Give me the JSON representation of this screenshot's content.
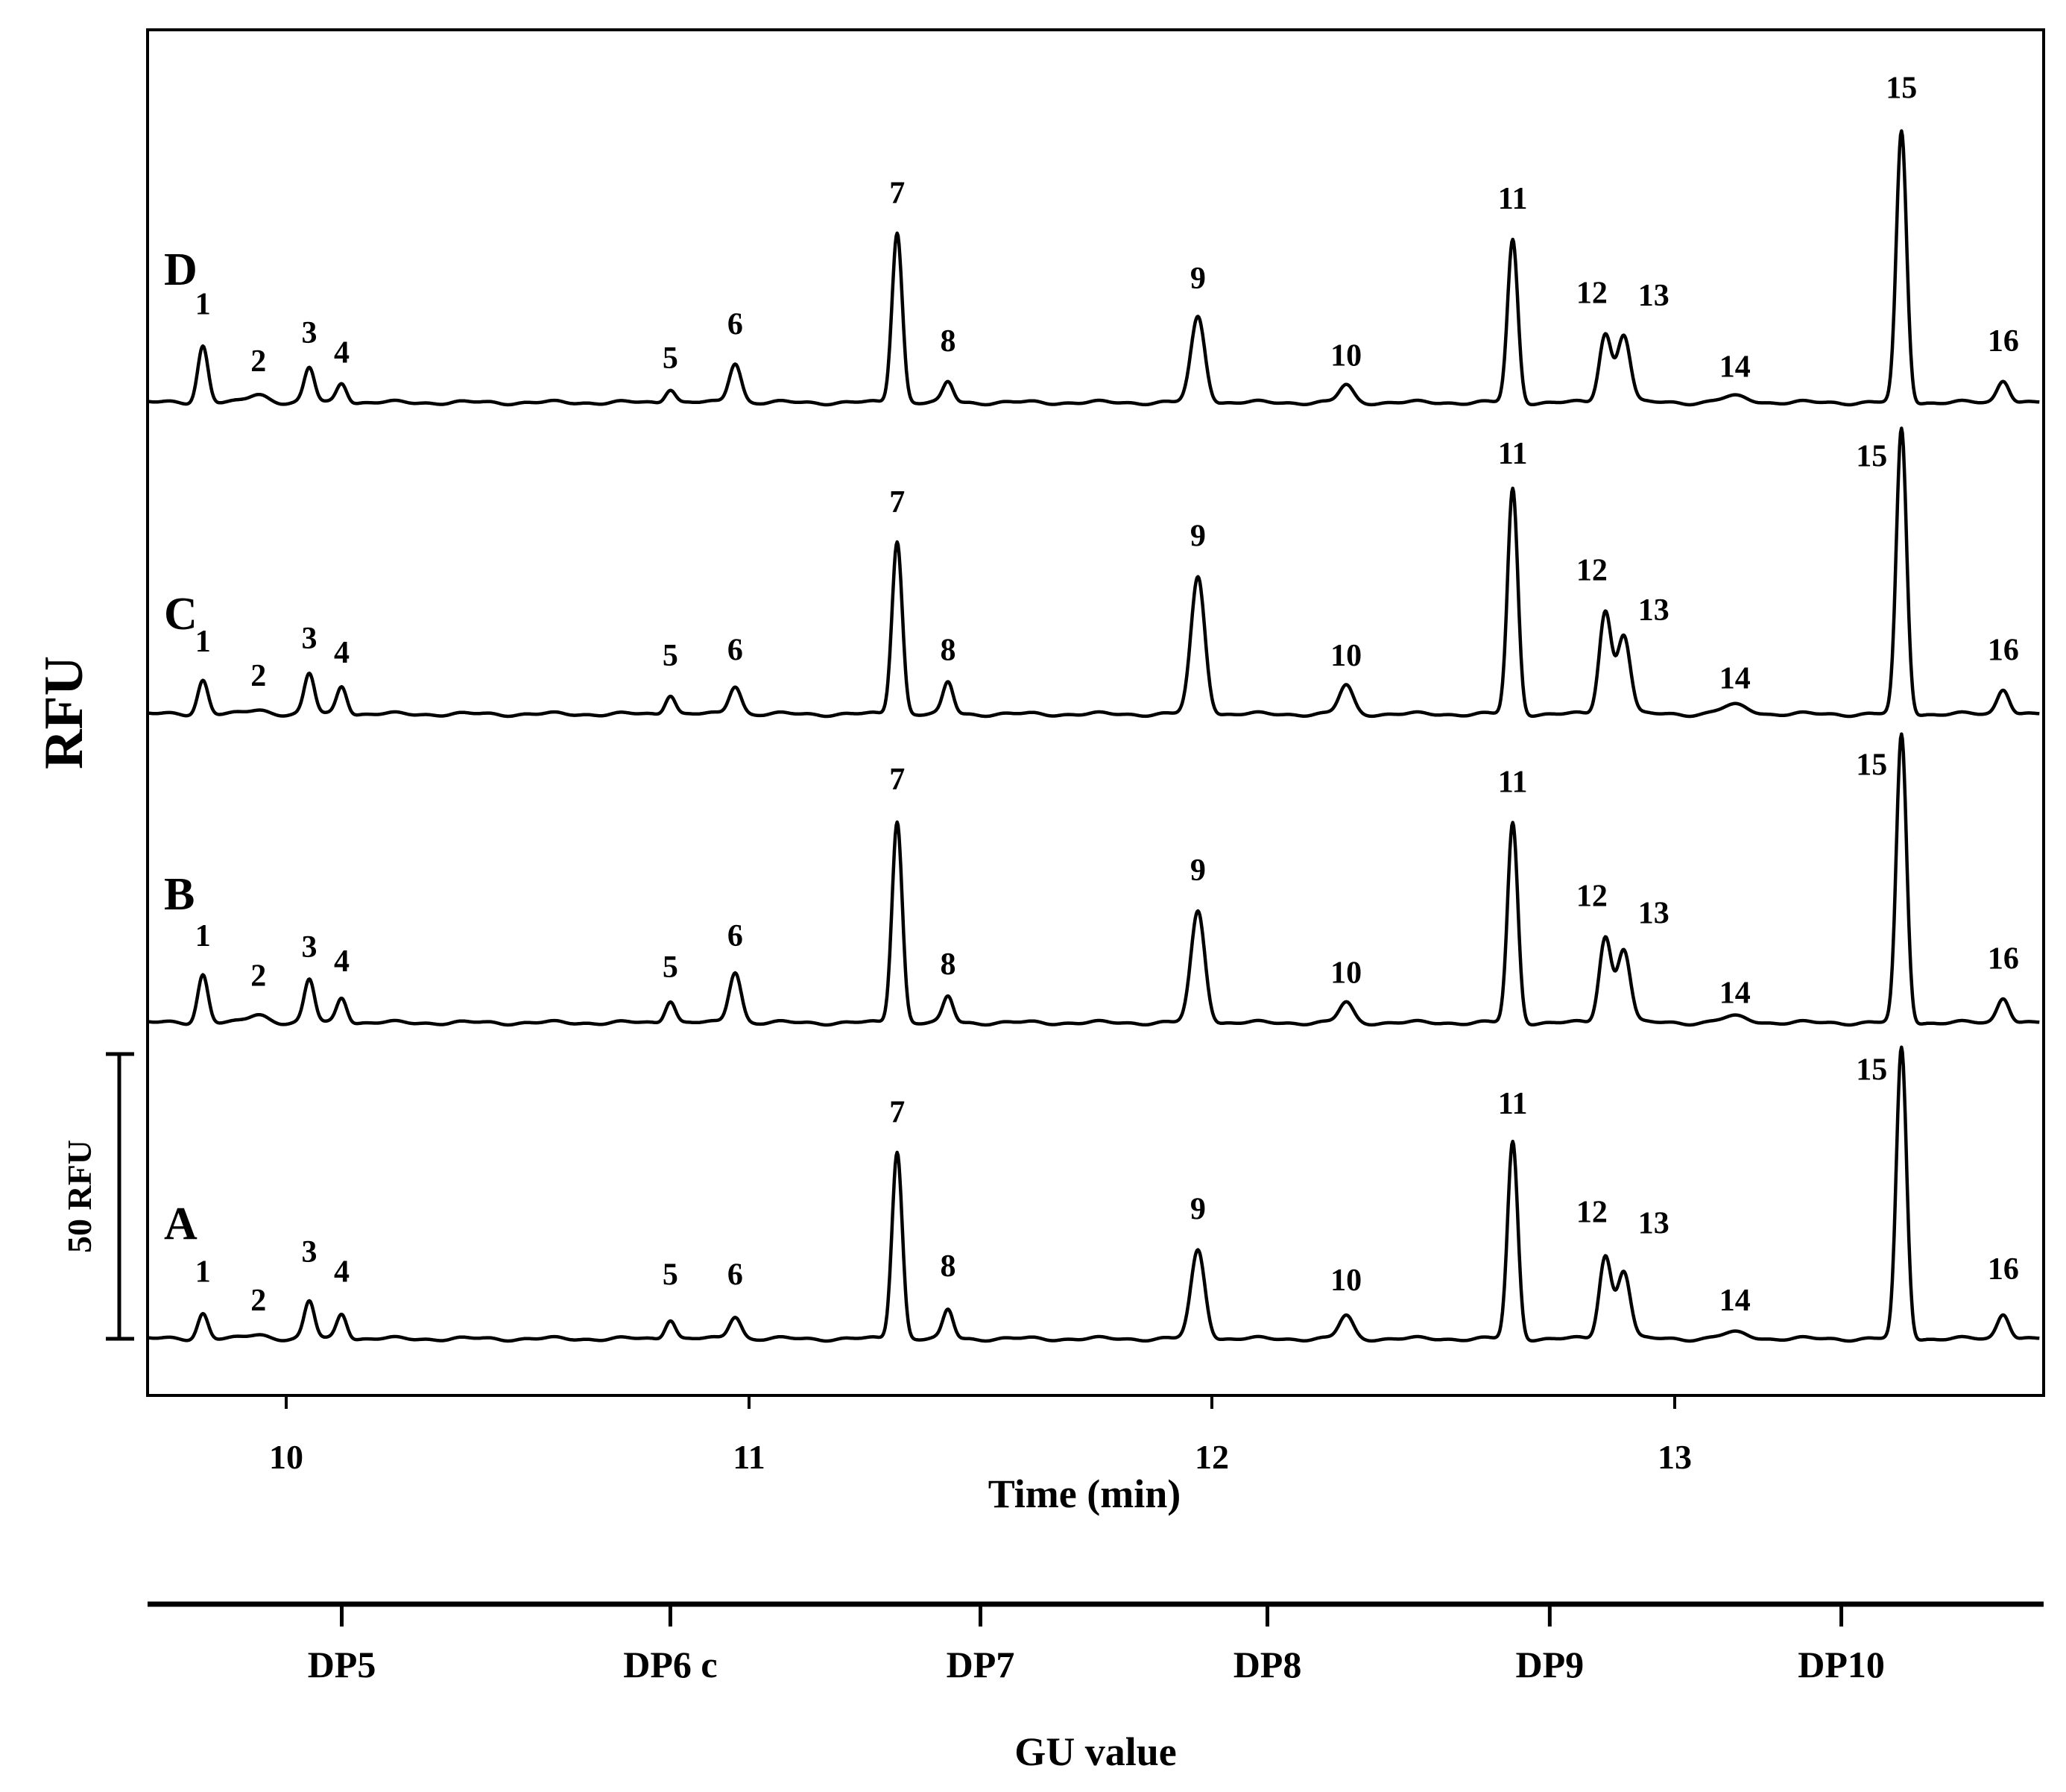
{
  "chart_data": {
    "type": "line",
    "ylabel": "RFU",
    "xlabel": "Time (min)",
    "xlim": [
      9.7,
      13.8
    ],
    "x_ticks": [
      "10",
      "11",
      "12",
      "13"
    ],
    "scale_bar_label": "50 RFU",
    "second_axis": {
      "title": "GU value",
      "ticks": [
        {
          "label": "DP5",
          "time": 10.12
        },
        {
          "label": "DP6 c",
          "time": 10.83
        },
        {
          "label": "DP7",
          "time": 11.5
        },
        {
          "label": "DP8",
          "time": 12.12
        },
        {
          "label": "DP9",
          "time": 12.73
        },
        {
          "label": "DP10",
          "time": 13.36
        }
      ]
    },
    "peak_labels": [
      "1",
      "2",
      "3",
      "4",
      "5",
      "6",
      "7",
      "8",
      "9",
      "10",
      "11",
      "12",
      "13",
      "14",
      "15",
      "16"
    ],
    "peak_times": [
      9.82,
      9.94,
      10.05,
      10.12,
      10.83,
      10.97,
      11.32,
      11.43,
      11.97,
      12.29,
      12.65,
      12.85,
      12.89,
      13.13,
      13.49,
      13.71
    ],
    "series": [
      {
        "name": "A",
        "peak_heights_rfu": [
          4.5,
          0.8,
          6.5,
          4.5,
          3.5,
          4.0,
          33.0,
          5.0,
          15.5,
          4.0,
          34.5,
          14.5,
          12.0,
          1.0,
          51.0,
          4.5
        ],
        "peak_label_heights_rfu": [
          10,
          5,
          13.5,
          10,
          9.5,
          9.5,
          38,
          11,
          21,
          8.5,
          39.5,
          20.5,
          18.5,
          5,
          45.5,
          10.5
        ]
      },
      {
        "name": "B",
        "peak_heights_rfu": [
          8.5,
          1.5,
          7.5,
          4.5,
          4.0,
          9.0,
          35.5,
          4.5,
          19.5,
          3.5,
          35.0,
          15.0,
          13.0,
          1.0,
          50.5,
          4.5
        ],
        "peak_label_heights_rfu": [
          13.5,
          6.5,
          11.5,
          9,
          8,
          13.5,
          41,
          8.5,
          25,
          7,
          40.5,
          20.5,
          17.5,
          3.5,
          43.5,
          9.5
        ]
      },
      {
        "name": "C",
        "peak_heights_rfu": [
          6.0,
          0.8,
          7.0,
          5.0,
          3.5,
          5.0,
          30.5,
          5.5,
          24.0,
          5.0,
          39.5,
          18.0,
          14.0,
          1.5,
          50.0,
          4.5
        ],
        "peak_label_heights_rfu": [
          11,
          5,
          11.5,
          9,
          8.5,
          9.5,
          35.5,
          9.5,
          29.5,
          8.5,
          44,
          23.5,
          16.5,
          4.5,
          43.5,
          9.5
        ]
      },
      {
        "name": "D",
        "peak_heights_rfu": [
          10.0,
          1.5,
          6.0,
          3.5,
          2.5,
          7.0,
          30.0,
          3.5,
          15.0,
          3.0,
          28.5,
          12.0,
          12.0,
          1.0,
          47.5,
          4.0
        ],
        "peak_label_heights_rfu": [
          15.5,
          5.5,
          10.5,
          7,
          6,
          12,
          35,
          9,
          20,
          6.5,
          34,
          17.5,
          17,
          4.5,
          53.5,
          9
        ]
      }
    ],
    "grid": false,
    "legend": "none"
  }
}
